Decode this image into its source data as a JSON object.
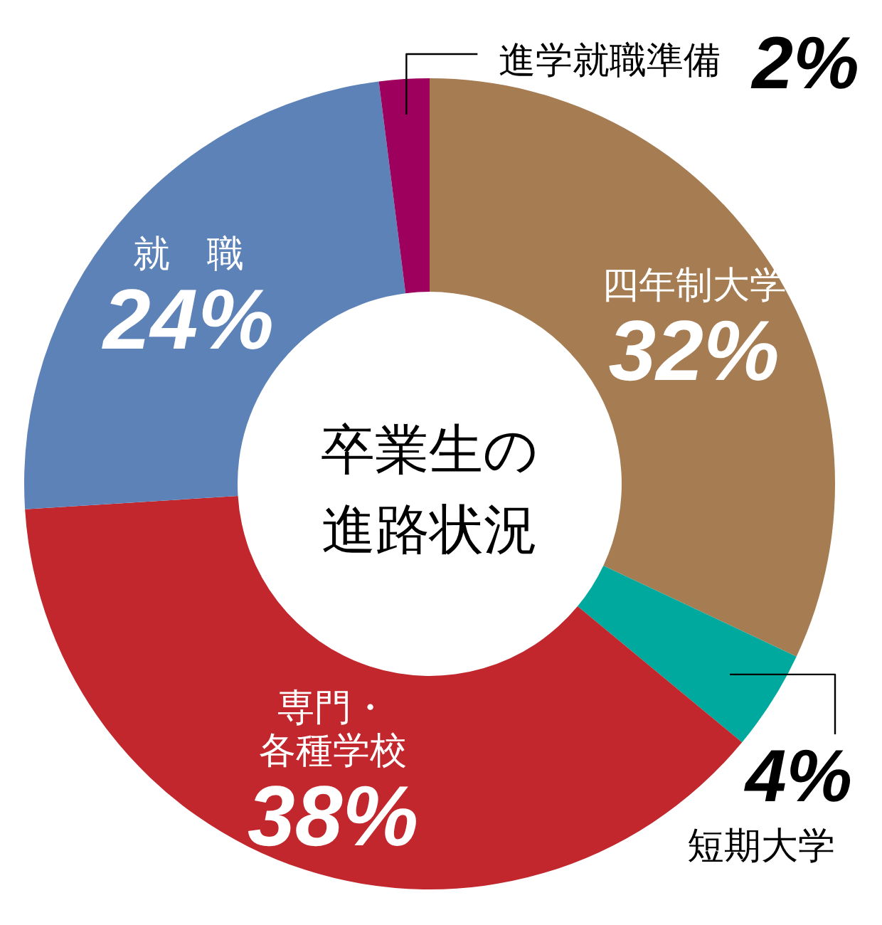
{
  "chart_data": {
    "type": "donut",
    "title": "卒業生の進路状況",
    "categories": [
      "四年制大学",
      "短期大学",
      "専門・各種学校",
      "就　職",
      "進学就職準備"
    ],
    "values": [
      32,
      4,
      38,
      24,
      2
    ],
    "colors": [
      "#a67c52",
      "#00a99d",
      "#c1272d",
      "#5d82b8",
      "#9e005d"
    ],
    "value_labels": [
      "32%",
      "4%",
      "38%",
      "24%",
      "2%"
    ]
  }
}
